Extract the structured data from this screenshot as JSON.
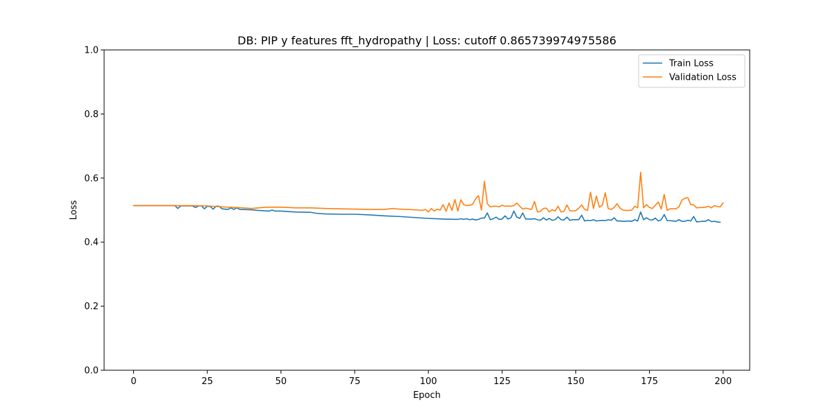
{
  "chart_data": {
    "type": "line",
    "title": "DB: PIP y features fft_hydropathy | Loss: cutoff 0.865739974975586",
    "xlabel": "Epoch",
    "ylabel": "Loss",
    "xlim": [
      -10,
      209
    ],
    "ylim": [
      0,
      1.0
    ],
    "xticks": [
      0,
      25,
      50,
      75,
      100,
      125,
      150,
      175,
      200
    ],
    "yticks": [
      0.0,
      0.2,
      0.4,
      0.6,
      0.8,
      1.0
    ],
    "xtick_labels": [
      "0",
      "25",
      "50",
      "75",
      "100",
      "125",
      "150",
      "175",
      "200"
    ],
    "ytick_labels": [
      "0.0",
      "0.2",
      "0.4",
      "0.6",
      "0.8",
      "1.0"
    ],
    "grid": false,
    "legend_position": "top-right",
    "series": [
      {
        "name": "Train Loss",
        "color": "#1f77b4",
        "points": [
          [
            0,
            0.514
          ],
          [
            5,
            0.514
          ],
          [
            10,
            0.514
          ],
          [
            14,
            0.514
          ],
          [
            15,
            0.505
          ],
          [
            16,
            0.513
          ],
          [
            20,
            0.513
          ],
          [
            21,
            0.508
          ],
          [
            22,
            0.513
          ],
          [
            23,
            0.513
          ],
          [
            24,
            0.504
          ],
          [
            25,
            0.512
          ],
          [
            26,
            0.511
          ],
          [
            27,
            0.503
          ],
          [
            28,
            0.512
          ],
          [
            29,
            0.512
          ],
          [
            30,
            0.504
          ],
          [
            32,
            0.502
          ],
          [
            33,
            0.507
          ],
          [
            34,
            0.502
          ],
          [
            35,
            0.507
          ],
          [
            36,
            0.502
          ],
          [
            40,
            0.501
          ],
          [
            42,
            0.499
          ],
          [
            46,
            0.497
          ],
          [
            47,
            0.5
          ],
          [
            48,
            0.497
          ],
          [
            50,
            0.497
          ],
          [
            55,
            0.494
          ],
          [
            60,
            0.493
          ],
          [
            62,
            0.49
          ],
          [
            65,
            0.488
          ],
          [
            70,
            0.487
          ],
          [
            75,
            0.487
          ],
          [
            80,
            0.485
          ],
          [
            85,
            0.482
          ],
          [
            90,
            0.48
          ],
          [
            95,
            0.477
          ],
          [
            100,
            0.474
          ],
          [
            105,
            0.472
          ],
          [
            110,
            0.471
          ],
          [
            111,
            0.473
          ],
          [
            112,
            0.471
          ],
          [
            113,
            0.473
          ],
          [
            114,
            0.47
          ],
          [
            115,
            0.472
          ],
          [
            116,
            0.469
          ],
          [
            117,
            0.471
          ],
          [
            118,
            0.475
          ],
          [
            119,
            0.475
          ],
          [
            120,
            0.491
          ],
          [
            121,
            0.47
          ],
          [
            122,
            0.473
          ],
          [
            123,
            0.478
          ],
          [
            124,
            0.471
          ],
          [
            125,
            0.472
          ],
          [
            126,
            0.482
          ],
          [
            127,
            0.472
          ],
          [
            128,
            0.476
          ],
          [
            129,
            0.497
          ],
          [
            130,
            0.478
          ],
          [
            131,
            0.474
          ],
          [
            132,
            0.491
          ],
          [
            133,
            0.472
          ],
          [
            134,
            0.472
          ],
          [
            135,
            0.472
          ],
          [
            136,
            0.473
          ],
          [
            137,
            0.47
          ],
          [
            138,
            0.468
          ],
          [
            139,
            0.476
          ],
          [
            140,
            0.469
          ],
          [
            141,
            0.474
          ],
          [
            142,
            0.468
          ],
          [
            143,
            0.47
          ],
          [
            144,
            0.479
          ],
          [
            145,
            0.47
          ],
          [
            146,
            0.469
          ],
          [
            147,
            0.478
          ],
          [
            148,
            0.468
          ],
          [
            149,
            0.47
          ],
          [
            150,
            0.47
          ],
          [
            151,
            0.47
          ],
          [
            152,
            0.484
          ],
          [
            153,
            0.466
          ],
          [
            154,
            0.468
          ],
          [
            155,
            0.467
          ],
          [
            156,
            0.47
          ],
          [
            157,
            0.466
          ],
          [
            158,
            0.467
          ],
          [
            159,
            0.468
          ],
          [
            160,
            0.467
          ],
          [
            161,
            0.47
          ],
          [
            162,
            0.468
          ],
          [
            163,
            0.476
          ],
          [
            164,
            0.466
          ],
          [
            165,
            0.466
          ],
          [
            166,
            0.465
          ],
          [
            167,
            0.465
          ],
          [
            168,
            0.466
          ],
          [
            169,
            0.465
          ],
          [
            170,
            0.47
          ],
          [
            171,
            0.466
          ],
          [
            172,
            0.494
          ],
          [
            173,
            0.47
          ],
          [
            174,
            0.476
          ],
          [
            175,
            0.47
          ],
          [
            176,
            0.469
          ],
          [
            177,
            0.475
          ],
          [
            178,
            0.466
          ],
          [
            179,
            0.47
          ],
          [
            180,
            0.486
          ],
          [
            181,
            0.467
          ],
          [
            182,
            0.467
          ],
          [
            183,
            0.466
          ],
          [
            184,
            0.465
          ],
          [
            185,
            0.47
          ],
          [
            186,
            0.465
          ],
          [
            187,
            0.465
          ],
          [
            188,
            0.468
          ],
          [
            189,
            0.466
          ],
          [
            190,
            0.48
          ],
          [
            191,
            0.463
          ],
          [
            192,
            0.464
          ],
          [
            193,
            0.465
          ],
          [
            194,
            0.465
          ],
          [
            195,
            0.47
          ],
          [
            196,
            0.464
          ],
          [
            197,
            0.465
          ],
          [
            198,
            0.463
          ],
          [
            199,
            0.462
          ]
        ]
      },
      {
        "name": "Validation Loss",
        "color": "#ff7f0e",
        "points": [
          [
            0,
            0.514
          ],
          [
            10,
            0.514
          ],
          [
            15,
            0.514
          ],
          [
            20,
            0.514
          ],
          [
            25,
            0.513
          ],
          [
            30,
            0.51
          ],
          [
            35,
            0.508
          ],
          [
            40,
            0.505
          ],
          [
            45,
            0.509
          ],
          [
            50,
            0.509
          ],
          [
            55,
            0.507
          ],
          [
            60,
            0.507
          ],
          [
            65,
            0.505
          ],
          [
            70,
            0.504
          ],
          [
            75,
            0.503
          ],
          [
            80,
            0.502
          ],
          [
            85,
            0.502
          ],
          [
            88,
            0.505
          ],
          [
            90,
            0.503
          ],
          [
            93,
            0.502
          ],
          [
            95,
            0.501
          ],
          [
            97,
            0.5
          ],
          [
            98,
            0.499
          ],
          [
            99,
            0.502
          ],
          [
            100,
            0.494
          ],
          [
            101,
            0.505
          ],
          [
            102,
            0.497
          ],
          [
            103,
            0.503
          ],
          [
            104,
            0.5
          ],
          [
            105,
            0.517
          ],
          [
            106,
            0.496
          ],
          [
            107,
            0.522
          ],
          [
            108,
            0.499
          ],
          [
            109,
            0.533
          ],
          [
            110,
            0.497
          ],
          [
            111,
            0.532
          ],
          [
            112,
            0.517
          ],
          [
            113,
            0.514
          ],
          [
            114,
            0.515
          ],
          [
            115,
            0.518
          ],
          [
            116,
            0.535
          ],
          [
            117,
            0.545
          ],
          [
            118,
            0.5
          ],
          [
            119,
            0.59
          ],
          [
            120,
            0.52
          ],
          [
            121,
            0.51
          ],
          [
            122,
            0.512
          ],
          [
            123,
            0.512
          ],
          [
            124,
            0.51
          ],
          [
            125,
            0.515
          ],
          [
            126,
            0.512
          ],
          [
            127,
            0.513
          ],
          [
            128,
            0.512
          ],
          [
            129,
            0.514
          ],
          [
            130,
            0.522
          ],
          [
            131,
            0.512
          ],
          [
            132,
            0.503
          ],
          [
            133,
            0.506
          ],
          [
            134,
            0.504
          ],
          [
            135,
            0.502
          ],
          [
            136,
            0.527
          ],
          [
            137,
            0.494
          ],
          [
            138,
            0.496
          ],
          [
            139,
            0.505
          ],
          [
            140,
            0.506
          ],
          [
            141,
            0.494
          ],
          [
            142,
            0.501
          ],
          [
            143,
            0.497
          ],
          [
            144,
            0.512
          ],
          [
            145,
            0.494
          ],
          [
            146,
            0.496
          ],
          [
            147,
            0.516
          ],
          [
            148,
            0.498
          ],
          [
            149,
            0.497
          ],
          [
            150,
            0.498
          ],
          [
            151,
            0.506
          ],
          [
            152,
            0.516
          ],
          [
            153,
            0.502
          ],
          [
            154,
            0.499
          ],
          [
            155,
            0.556
          ],
          [
            156,
            0.505
          ],
          [
            157,
            0.544
          ],
          [
            158,
            0.509
          ],
          [
            159,
            0.515
          ],
          [
            160,
            0.554
          ],
          [
            161,
            0.505
          ],
          [
            162,
            0.502
          ],
          [
            163,
            0.508
          ],
          [
            164,
            0.52
          ],
          [
            165,
            0.506
          ],
          [
            166,
            0.5
          ],
          [
            167,
            0.499
          ],
          [
            168,
            0.499
          ],
          [
            169,
            0.5
          ],
          [
            170,
            0.512
          ],
          [
            171,
            0.507
          ],
          [
            172,
            0.618
          ],
          [
            173,
            0.507
          ],
          [
            174,
            0.517
          ],
          [
            175,
            0.508
          ],
          [
            176,
            0.505
          ],
          [
            177,
            0.515
          ],
          [
            178,
            0.525
          ],
          [
            179,
            0.503
          ],
          [
            180,
            0.549
          ],
          [
            181,
            0.499
          ],
          [
            182,
            0.504
          ],
          [
            183,
            0.504
          ],
          [
            184,
            0.504
          ],
          [
            185,
            0.51
          ],
          [
            186,
            0.531
          ],
          [
            187,
            0.537
          ],
          [
            188,
            0.539
          ],
          [
            189,
            0.517
          ],
          [
            190,
            0.516
          ],
          [
            191,
            0.507
          ],
          [
            192,
            0.508
          ],
          [
            193,
            0.508
          ],
          [
            194,
            0.509
          ],
          [
            195,
            0.512
          ],
          [
            196,
            0.507
          ],
          [
            197,
            0.514
          ],
          [
            198,
            0.511
          ],
          [
            199,
            0.51
          ],
          [
            200,
            0.523
          ]
        ]
      }
    ]
  }
}
